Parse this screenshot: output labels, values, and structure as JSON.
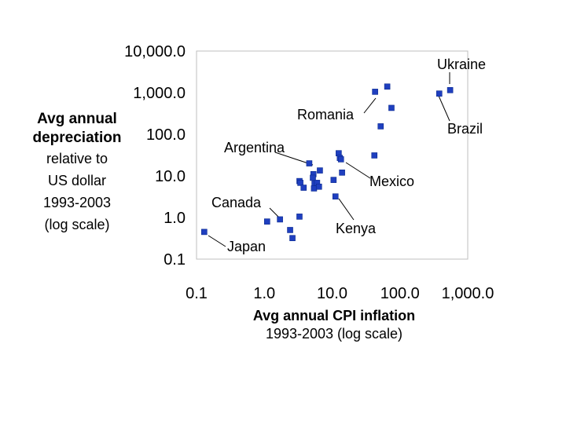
{
  "chart_data": {
    "type": "scatter",
    "title": "",
    "xlabel": "Avg annual CPI inflation",
    "xlabel_sub": "1993-2003 (log scale)",
    "ylabel_lines": [
      "Avg annual",
      "depreciation"
    ],
    "ylabel_sub_lines": [
      "relative to",
      "US dollar",
      "1993-2003",
      "(log scale)"
    ],
    "x_scale": "log",
    "y_scale": "log",
    "xlim": [
      0.1,
      1000
    ],
    "ylim": [
      0.1,
      10000
    ],
    "x_ticks": [
      0.1,
      1,
      10,
      100,
      1000
    ],
    "x_tick_labels": [
      "0.1",
      "1.0",
      "10.0",
      "100.0",
      "1,000.0"
    ],
    "y_ticks": [
      10000,
      1000,
      100,
      10,
      1,
      0.1
    ],
    "y_tick_labels": [
      "10,000.0",
      "1,000.0",
      "100.0",
      "10.0",
      "1.0",
      "0.1"
    ],
    "marker_color": "#1f3fbf",
    "points": [
      {
        "x": 0.13,
        "y": 0.45
      },
      {
        "x": 1.1,
        "y": 0.8
      },
      {
        "x": 1.7,
        "y": 0.9
      },
      {
        "x": 2.4,
        "y": 0.5
      },
      {
        "x": 2.6,
        "y": 0.32
      },
      {
        "x": 3.3,
        "y": 1.05
      },
      {
        "x": 3.3,
        "y": 7.5
      },
      {
        "x": 3.4,
        "y": 6.8
      },
      {
        "x": 3.8,
        "y": 5.2
      },
      {
        "x": 4.6,
        "y": 20
      },
      {
        "x": 5.3,
        "y": 11
      },
      {
        "x": 5.2,
        "y": 9
      },
      {
        "x": 5.5,
        "y": 6.5
      },
      {
        "x": 5.4,
        "y": 5.0
      },
      {
        "x": 6.0,
        "y": 6.8
      },
      {
        "x": 6.4,
        "y": 5.5
      },
      {
        "x": 6.6,
        "y": 13.5
      },
      {
        "x": 10.5,
        "y": 8.0
      },
      {
        "x": 11.2,
        "y": 3.2
      },
      {
        "x": 12.5,
        "y": 35
      },
      {
        "x": 13.0,
        "y": 27
      },
      {
        "x": 13.5,
        "y": 25
      },
      {
        "x": 14.0,
        "y": 12
      },
      {
        "x": 42,
        "y": 31
      },
      {
        "x": 43,
        "y": 1050
      },
      {
        "x": 52,
        "y": 155
      },
      {
        "x": 65,
        "y": 1400
      },
      {
        "x": 75,
        "y": 430
      },
      {
        "x": 380,
        "y": 950
      },
      {
        "x": 550,
        "y": 1150
      }
    ],
    "annotations": [
      {
        "label": "Ukraine",
        "point": {
          "x": 550,
          "y": 1150
        }
      },
      {
        "label": "Romania",
        "point": {
          "x": 43,
          "y": 1050
        }
      },
      {
        "label": "Brazil",
        "point": {
          "x": 380,
          "y": 950
        }
      },
      {
        "label": "Argentina",
        "point": {
          "x": 4.6,
          "y": 20
        }
      },
      {
        "label": "Mexico",
        "point": {
          "x": 13.5,
          "y": 25
        }
      },
      {
        "label": "Canada",
        "point": {
          "x": 1.7,
          "y": 0.9
        }
      },
      {
        "label": "Kenya",
        "point": {
          "x": 11.2,
          "y": 3.2
        }
      },
      {
        "label": "Japan",
        "point": {
          "x": 0.13,
          "y": 0.45
        }
      }
    ]
  }
}
